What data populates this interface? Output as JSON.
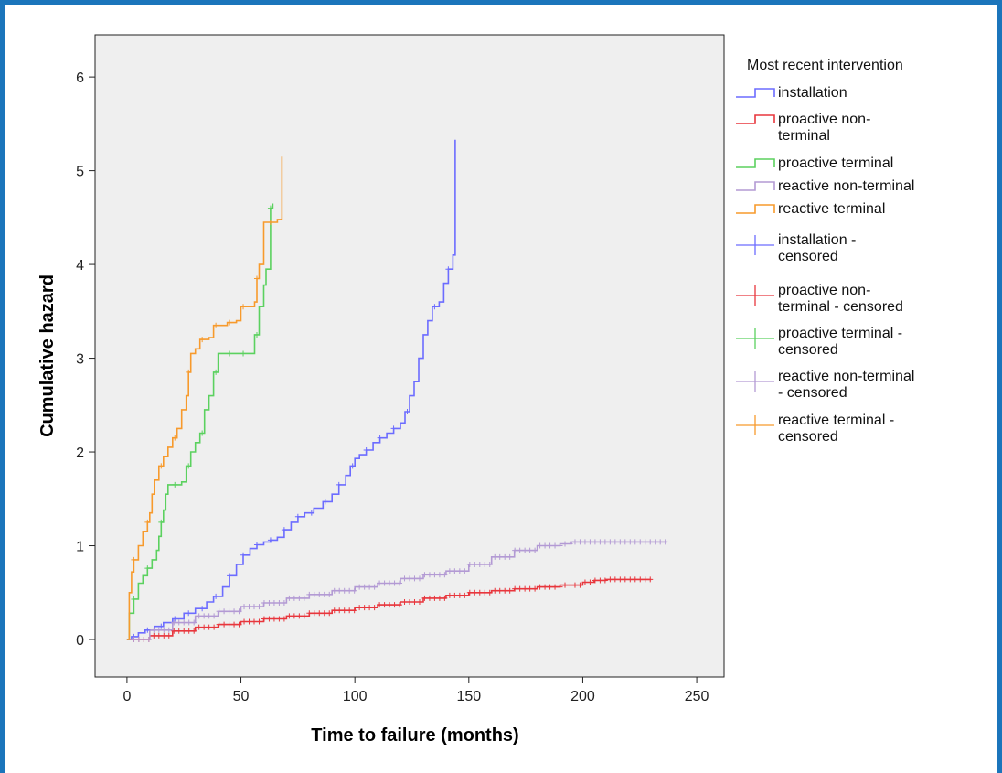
{
  "chart_data": {
    "type": "line",
    "title": "",
    "xlabel": "Time to failure (months)",
    "ylabel": "Cumulative hazard",
    "xlim": [
      -14,
      262
    ],
    "ylim": [
      -0.4,
      6.45
    ],
    "xticks": [
      "0",
      "50",
      "100",
      "150",
      "200",
      "250"
    ],
    "yticks": [
      "0",
      "1",
      "2",
      "3",
      "4",
      "5",
      "6"
    ],
    "grid": false,
    "legend_position": "right",
    "legend_title": "Most recent intervention",
    "colors": {
      "installation": "#6c6cff",
      "proactive non-terminal": "#e8363d",
      "proactive terminal": "#5bd15f",
      "reactive non-terminal": "#b39ad4",
      "reactive terminal": "#f79a2c",
      "plot_background": "#efefef"
    },
    "legend": [
      {
        "label_lines": [
          "installation"
        ],
        "symbol": "step",
        "color": "#6c6cff"
      },
      {
        "label_lines": [
          "proactive non-",
          "terminal"
        ],
        "symbol": "step",
        "color": "#e8363d"
      },
      {
        "label_lines": [
          "proactive terminal"
        ],
        "symbol": "step",
        "color": "#5bd15f"
      },
      {
        "label_lines": [
          "reactive non-terminal"
        ],
        "symbol": "step",
        "color": "#b39ad4"
      },
      {
        "label_lines": [
          "reactive terminal"
        ],
        "symbol": "step",
        "color": "#f79a2c"
      },
      {
        "label_lines": [
          "installation -",
          "censored"
        ],
        "symbol": "plus",
        "color": "#6c6cff"
      },
      {
        "label_lines": [
          "proactive non-",
          "terminal - censored"
        ],
        "symbol": "plus",
        "color": "#e8363d"
      },
      {
        "label_lines": [
          "proactive terminal -",
          "censored"
        ],
        "symbol": "plus",
        "color": "#5bd15f"
      },
      {
        "label_lines": [
          "reactive non-terminal",
          "- censored"
        ],
        "symbol": "plus",
        "color": "#b39ad4"
      },
      {
        "label_lines": [
          "reactive terminal -",
          "censored"
        ],
        "symbol": "plus",
        "color": "#f79a2c"
      }
    ],
    "series": [
      {
        "name": "installation",
        "color": "#6c6cff",
        "points": [
          [
            0,
            0
          ],
          [
            2,
            0.03
          ],
          [
            5,
            0.07
          ],
          [
            8,
            0.1
          ],
          [
            12,
            0.14
          ],
          [
            16,
            0.18
          ],
          [
            20,
            0.22
          ],
          [
            25,
            0.28
          ],
          [
            30,
            0.33
          ],
          [
            35,
            0.4
          ],
          [
            38,
            0.46
          ],
          [
            42,
            0.56
          ],
          [
            45,
            0.68
          ],
          [
            48,
            0.8
          ],
          [
            51,
            0.9
          ],
          [
            54,
            0.97
          ],
          [
            57,
            1.01
          ],
          [
            60,
            1.04
          ],
          [
            63,
            1.06
          ],
          [
            66,
            1.09
          ],
          [
            69,
            1.17
          ],
          [
            72,
            1.25
          ],
          [
            75,
            1.31
          ],
          [
            78,
            1.35
          ],
          [
            82,
            1.4
          ],
          [
            86,
            1.47
          ],
          [
            90,
            1.55
          ],
          [
            93,
            1.65
          ],
          [
            96,
            1.75
          ],
          [
            98,
            1.85
          ],
          [
            100,
            1.93
          ],
          [
            102,
            1.97
          ],
          [
            105,
            2.02
          ],
          [
            108,
            2.1
          ],
          [
            111,
            2.15
          ],
          [
            114,
            2.2
          ],
          [
            117,
            2.25
          ],
          [
            120,
            2.31
          ],
          [
            122,
            2.43
          ],
          [
            124,
            2.6
          ],
          [
            126,
            2.75
          ],
          [
            128,
            3.0
          ],
          [
            130,
            3.25
          ],
          [
            132,
            3.4
          ],
          [
            134,
            3.55
          ],
          [
            137,
            3.6
          ],
          [
            139,
            3.8
          ],
          [
            141,
            3.95
          ],
          [
            143,
            4.1
          ],
          [
            144,
            5.33
          ]
        ]
      },
      {
        "name": "proactive non-terminal",
        "color": "#e8363d",
        "points": [
          [
            0,
            0
          ],
          [
            10,
            0.04
          ],
          [
            20,
            0.09
          ],
          [
            30,
            0.13
          ],
          [
            40,
            0.16
          ],
          [
            50,
            0.19
          ],
          [
            60,
            0.22
          ],
          [
            70,
            0.25
          ],
          [
            80,
            0.28
          ],
          [
            90,
            0.31
          ],
          [
            100,
            0.34
          ],
          [
            110,
            0.37
          ],
          [
            120,
            0.4
          ],
          [
            130,
            0.44
          ],
          [
            140,
            0.47
          ],
          [
            150,
            0.5
          ],
          [
            160,
            0.52
          ],
          [
            170,
            0.54
          ],
          [
            180,
            0.56
          ],
          [
            190,
            0.58
          ],
          [
            200,
            0.61
          ],
          [
            205,
            0.63
          ],
          [
            210,
            0.64
          ],
          [
            220,
            0.64
          ],
          [
            230,
            0.64
          ]
        ]
      },
      {
        "name": "proactive terminal",
        "color": "#5bd15f",
        "points": [
          [
            0,
            0
          ],
          [
            1,
            0.28
          ],
          [
            3,
            0.43
          ],
          [
            5,
            0.6
          ],
          [
            7,
            0.68
          ],
          [
            9,
            0.76
          ],
          [
            11,
            0.85
          ],
          [
            13,
            0.95
          ],
          [
            14,
            1.1
          ],
          [
            15,
            1.25
          ],
          [
            16,
            1.38
          ],
          [
            17,
            1.55
          ],
          [
            18,
            1.65
          ],
          [
            20,
            1.65
          ],
          [
            24,
            1.68
          ],
          [
            26,
            1.85
          ],
          [
            28,
            2.0
          ],
          [
            30,
            2.1
          ],
          [
            32,
            2.2
          ],
          [
            34,
            2.45
          ],
          [
            36,
            2.6
          ],
          [
            38,
            2.85
          ],
          [
            40,
            3.05
          ],
          [
            44,
            3.05
          ],
          [
            52,
            3.05
          ],
          [
            56,
            3.25
          ],
          [
            58,
            3.55
          ],
          [
            60,
            3.78
          ],
          [
            61,
            3.95
          ],
          [
            63,
            4.6
          ],
          [
            64,
            4.65
          ]
        ]
      },
      {
        "name": "reactive non-terminal",
        "color": "#b39ad4",
        "points": [
          [
            0,
            0
          ],
          [
            10,
            0.1
          ],
          [
            20,
            0.18
          ],
          [
            30,
            0.25
          ],
          [
            40,
            0.3
          ],
          [
            50,
            0.35
          ],
          [
            60,
            0.39
          ],
          [
            70,
            0.44
          ],
          [
            80,
            0.48
          ],
          [
            90,
            0.52
          ],
          [
            100,
            0.56
          ],
          [
            110,
            0.6
          ],
          [
            120,
            0.65
          ],
          [
            130,
            0.69
          ],
          [
            140,
            0.73
          ],
          [
            150,
            0.8
          ],
          [
            160,
            0.88
          ],
          [
            170,
            0.95
          ],
          [
            180,
            1.0
          ],
          [
            190,
            1.02
          ],
          [
            195,
            1.04
          ],
          [
            205,
            1.04
          ],
          [
            215,
            1.04
          ],
          [
            225,
            1.04
          ],
          [
            237,
            1.04
          ]
        ]
      },
      {
        "name": "reactive terminal",
        "color": "#f79a2c",
        "points": [
          [
            0,
            0
          ],
          [
            1,
            0.5
          ],
          [
            2,
            0.72
          ],
          [
            3,
            0.85
          ],
          [
            5,
            1.0
          ],
          [
            7,
            1.15
          ],
          [
            9,
            1.25
          ],
          [
            10,
            1.35
          ],
          [
            11,
            1.55
          ],
          [
            12,
            1.7
          ],
          [
            14,
            1.85
          ],
          [
            16,
            1.95
          ],
          [
            18,
            2.05
          ],
          [
            20,
            2.15
          ],
          [
            22,
            2.25
          ],
          [
            24,
            2.45
          ],
          [
            26,
            2.6
          ],
          [
            27,
            2.85
          ],
          [
            28,
            3.05
          ],
          [
            30,
            3.1
          ],
          [
            32,
            3.2
          ],
          [
            36,
            3.22
          ],
          [
            38,
            3.35
          ],
          [
            44,
            3.38
          ],
          [
            48,
            3.4
          ],
          [
            50,
            3.55
          ],
          [
            54,
            3.55
          ],
          [
            56,
            3.6
          ],
          [
            57,
            3.85
          ],
          [
            58,
            4.0
          ],
          [
            60,
            4.45
          ],
          [
            62,
            4.45
          ],
          [
            66,
            4.48
          ],
          [
            68,
            5.15
          ]
        ]
      }
    ],
    "censored_ticks_approx": true
  }
}
